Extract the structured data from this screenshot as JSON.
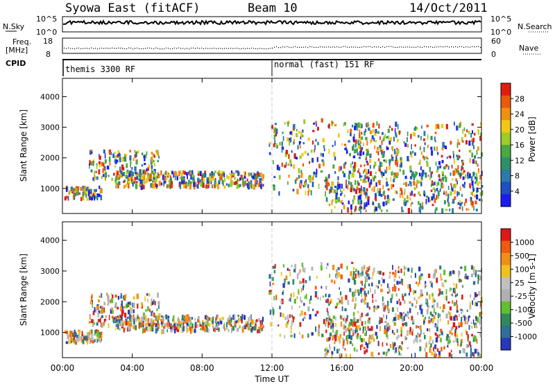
{
  "header": {
    "station": "Syowa East (fitACF)",
    "beam": "Beam 10",
    "date": "14/Oct/2011"
  },
  "strip_labels": {
    "nsky": "N.Sky",
    "nsky_max": "10^5",
    "nsky_min": "10^0",
    "nsearch": "N.Search",
    "nsearch_max": "10^5",
    "nsearch_min": "10^0",
    "freq": "Freq.",
    "freq_unit": "[MHz]",
    "freq_max": "18",
    "freq_min": "8",
    "nave": "Nave",
    "nave_max": "60",
    "nave_min": "0",
    "cpid": "CPID"
  },
  "cpid_modes": [
    {
      "label": "themis 3300 RF",
      "start_hour": 0
    },
    {
      "label": "normal (fast) 151 RF",
      "start_hour": 12
    }
  ],
  "chart_data": [
    {
      "type": "heatmap",
      "name": "power",
      "ylabel": "Slant Range [km]",
      "ylim": [
        180,
        4600
      ],
      "y_ticks": [
        "1000",
        "2000",
        "3000",
        "4000"
      ],
      "xlim_hours": [
        0,
        24
      ],
      "x_ticks": [
        "00:00",
        "04:00",
        "08:00",
        "12:00",
        "16:00",
        "20:00",
        "00:00"
      ],
      "xlabel": "Time UT",
      "colorbar": {
        "label": "Power [dB]",
        "ticks": [
          "4",
          "8",
          "12",
          "16",
          "20",
          "24",
          "28"
        ],
        "colors": [
          "#1c1cf0",
          "#1e4fc4",
          "#2c7aa8",
          "#2f9068",
          "#4aa840",
          "#9ccc28",
          "#f0c814",
          "#f09010",
          "#e85a10",
          "#e01c10"
        ]
      }
    },
    {
      "type": "heatmap",
      "name": "velocity",
      "ylabel": "Slant Range [km]",
      "ylim": [
        180,
        4600
      ],
      "y_ticks": [
        "1000",
        "2000",
        "3000",
        "4000"
      ],
      "xlim_hours": [
        0,
        24
      ],
      "x_ticks": [
        "00:00",
        "04:00",
        "08:00",
        "12:00",
        "16:00",
        "20:00",
        "00:00"
      ],
      "xlabel": "Time UT",
      "colorbar": {
        "label": "Velocity [m s-1]",
        "ticks": [
          "1000",
          "500",
          "100",
          "25",
          "-25",
          "-100",
          "-500",
          "-1000"
        ],
        "colors": [
          "#2838b8",
          "#2f6f9a",
          "#2f8a5a",
          "#60c030",
          "#b0b0b0",
          "#c0c0c0",
          "#f0c020",
          "#f09018",
          "#f05a10",
          "#e01818"
        ]
      }
    }
  ]
}
